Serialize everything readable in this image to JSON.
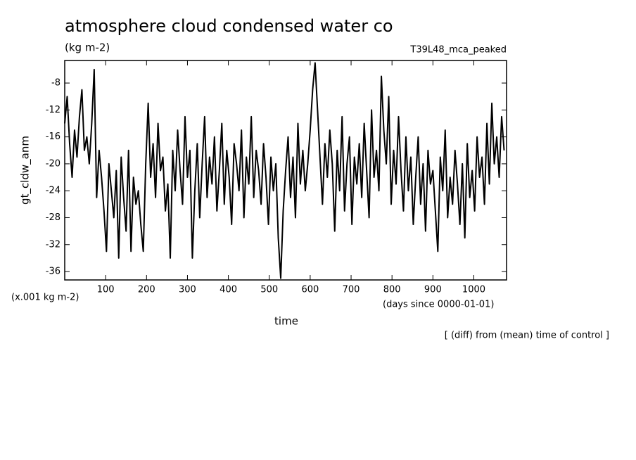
{
  "chart_data": {
    "type": "line",
    "title": "atmosphere cloud condensed water co",
    "subtitle": "(kg m-2)",
    "experiment": "T39L48_mca_peaked",
    "ylabel": "gt_cldw_anm",
    "yunits": "(x.001 kg m-2)",
    "xlabel": "time",
    "xunits": "(days since 0000-01-01)",
    "note": "[ (diff) from (mean) time of control ]",
    "xlim": [
      0,
      1080
    ],
    "ylim": [
      -37.25,
      -4.65
    ],
    "xticks": [
      100,
      200,
      300,
      400,
      500,
      600,
      700,
      800,
      900,
      1000
    ],
    "yticks": [
      -36,
      -32,
      -28,
      -24,
      -20,
      -16,
      -12,
      -8
    ],
    "series": [
      {
        "color": "#000000",
        "x": [
          0,
          6,
          12,
          18,
          24,
          30,
          36,
          42,
          48,
          54,
          60,
          66,
          72,
          78,
          84,
          90,
          96,
          102,
          108,
          114,
          120,
          126,
          132,
          138,
          144,
          150,
          156,
          162,
          168,
          174,
          180,
          186,
          192,
          198,
          204,
          210,
          216,
          222,
          228,
          234,
          240,
          246,
          252,
          258,
          264,
          270,
          276,
          282,
          288,
          294,
          300,
          306,
          312,
          318,
          324,
          330,
          336,
          342,
          348,
          354,
          360,
          366,
          372,
          378,
          384,
          390,
          396,
          402,
          408,
          414,
          420,
          426,
          432,
          438,
          444,
          450,
          456,
          462,
          468,
          474,
          480,
          486,
          492,
          498,
          504,
          510,
          516,
          522,
          528,
          534,
          540,
          546,
          552,
          558,
          564,
          570,
          576,
          582,
          588,
          594,
          600,
          606,
          612,
          618,
          624,
          630,
          636,
          642,
          648,
          654,
          660,
          666,
          672,
          678,
          684,
          690,
          696,
          702,
          708,
          714,
          720,
          726,
          732,
          738,
          744,
          750,
          756,
          762,
          768,
          774,
          780,
          786,
          792,
          798,
          804,
          810,
          816,
          822,
          828,
          834,
          840,
          846,
          852,
          858,
          864,
          870,
          876,
          882,
          888,
          894,
          900,
          906,
          912,
          918,
          924,
          930,
          936,
          942,
          948,
          954,
          960,
          966,
          972,
          978,
          984,
          990,
          996,
          1002,
          1008,
          1014,
          1020,
          1026,
          1032,
          1038,
          1044,
          1050,
          1056,
          1062,
          1068,
          1074
        ],
        "values": [
          -14,
          -10,
          -17,
          -22,
          -15,
          -19,
          -13,
          -9,
          -18,
          -16,
          -20,
          -14,
          -6,
          -25,
          -18,
          -22,
          -27,
          -33,
          -20,
          -24,
          -28,
          -21,
          -34,
          -19,
          -25,
          -30,
          -18,
          -33,
          -22,
          -26,
          -24,
          -29,
          -33,
          -20,
          -11,
          -22,
          -17,
          -25,
          -14,
          -21,
          -19,
          -27,
          -23,
          -34,
          -18,
          -24,
          -15,
          -21,
          -26,
          -13,
          -22,
          -18,
          -34,
          -24,
          -17,
          -28,
          -20,
          -13,
          -25,
          -19,
          -23,
          -16,
          -27,
          -21,
          -14,
          -26,
          -18,
          -22,
          -29,
          -17,
          -20,
          -24,
          -15,
          -28,
          -19,
          -23,
          -13,
          -25,
          -18,
          -21,
          -26,
          -17,
          -22,
          -29,
          -19,
          -24,
          -20,
          -31,
          -37,
          -27,
          -21,
          -16,
          -25,
          -19,
          -28,
          -14,
          -23,
          -18,
          -24,
          -20,
          -15,
          -9,
          -5,
          -12,
          -19,
          -26,
          -17,
          -22,
          -15,
          -20,
          -30,
          -18,
          -24,
          -13,
          -27,
          -20,
          -16,
          -29,
          -19,
          -23,
          -17,
          -25,
          -14,
          -21,
          -28,
          -12,
          -22,
          -18,
          -24,
          -7,
          -15,
          -20,
          -10,
          -26,
          -18,
          -23,
          -13,
          -21,
          -27,
          -16,
          -24,
          -19,
          -29,
          -22,
          -16,
          -26,
          -20,
          -30,
          -18,
          -23,
          -21,
          -27,
          -33,
          -19,
          -24,
          -15,
          -28,
          -22,
          -26,
          -18,
          -23,
          -29,
          -20,
          -31,
          -17,
          -25,
          -21,
          -27,
          -16,
          -22,
          -19,
          -26,
          -14,
          -23,
          -11,
          -20,
          -16,
          -22,
          -13,
          -18
        ]
      }
    ]
  }
}
